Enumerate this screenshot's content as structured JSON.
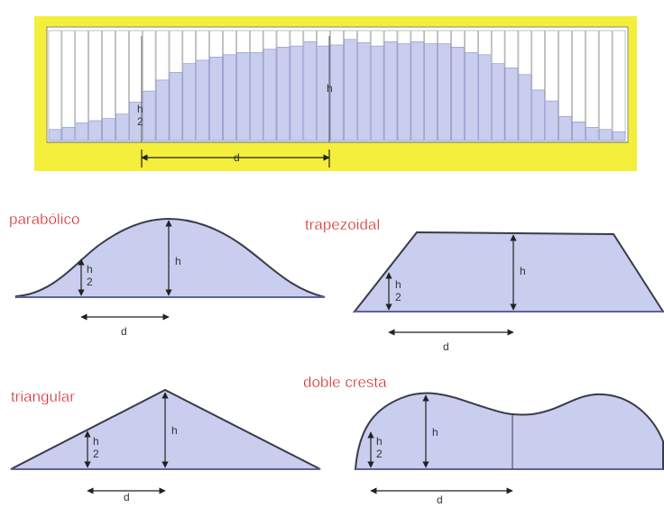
{
  "colors": {
    "frame_yellow": "#f4ee3c",
    "fill_lavender": "#c9cdee",
    "title_red": "#d81f1f",
    "outline": "#3a3a4a",
    "dim_line": "#222222"
  },
  "top_panel": {
    "height_label": "h",
    "half_height_num": "h",
    "half_height_den": "2",
    "distance_label": "d",
    "bar_heights": [
      0.1,
      0.12,
      0.16,
      0.18,
      0.2,
      0.24,
      0.35,
      0.45,
      0.55,
      0.62,
      0.7,
      0.73,
      0.76,
      0.78,
      0.8,
      0.8,
      0.83,
      0.85,
      0.86,
      0.9,
      0.86,
      0.87,
      0.92,
      0.89,
      0.86,
      0.9,
      0.88,
      0.9,
      0.88,
      0.88,
      0.85,
      0.8,
      0.78,
      0.7,
      0.66,
      0.6,
      0.46,
      0.36,
      0.22,
      0.17,
      0.12,
      0.1,
      0.08
    ]
  },
  "shapes": [
    {
      "key": "parabolic",
      "title": "parabólico",
      "h": "h",
      "h_num": "h",
      "h_den": "2",
      "d": "d"
    },
    {
      "key": "trapezoidal",
      "title": "trapezoidal",
      "h": "h",
      "h_num": "h",
      "h_den": "2",
      "d": "d"
    },
    {
      "key": "triangular",
      "title": "triangular",
      "h": "h",
      "h_num": "h",
      "h_den": "2",
      "d": "d"
    },
    {
      "key": "double-crest",
      "title": "doble cresta",
      "h": "h",
      "h_num": "h",
      "h_den": "2",
      "d": "d"
    }
  ]
}
